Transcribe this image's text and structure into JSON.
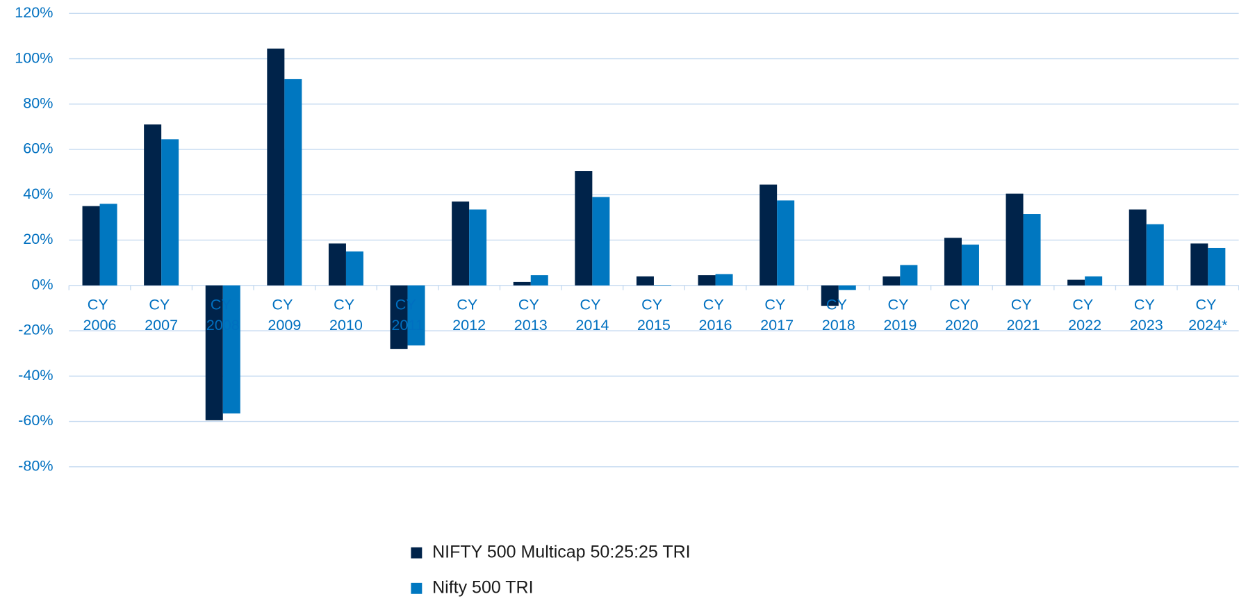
{
  "chart_data": {
    "type": "bar",
    "categories": [
      "CY 2006",
      "CY 2007",
      "CY 2008",
      "CY 2009",
      "CY 2010",
      "CY 2011",
      "CY 2012",
      "CY 2013",
      "CY 2014",
      "CY 2015",
      "CY 2016",
      "CY 2017",
      "CY 2018",
      "CY 2019",
      "CY 2020",
      "CY 2021",
      "CY 2022",
      "CY 2023",
      "CY 2024*"
    ],
    "series": [
      {
        "name": "NIFTY 500 Multicap 50:25:25 TRI",
        "color": "#00234a",
        "values": [
          35,
          71,
          -59.5,
          104.5,
          18.5,
          -28,
          37,
          1.5,
          50.5,
          4,
          4.5,
          44.5,
          -9,
          4,
          21,
          40.5,
          2.5,
          33.5,
          18.5
        ]
      },
      {
        "name": "Nifty 500 TRI",
        "color": "#0077c0",
        "values": [
          36,
          64.5,
          -56.5,
          91,
          15,
          -26.5,
          33.5,
          4.5,
          39,
          0.2,
          5,
          37.5,
          -2,
          9,
          18,
          31.5,
          4,
          27,
          16.5
        ]
      }
    ],
    "ylim": [
      -80,
      120
    ],
    "yticks": [
      {
        "value": -80,
        "label": "-80%"
      },
      {
        "value": -60,
        "label": "-60%"
      },
      {
        "value": -40,
        "label": "-40%"
      },
      {
        "value": -20,
        "label": "-20%"
      },
      {
        "value": 0,
        "label": "0%"
      },
      {
        "value": 20,
        "label": "20%"
      },
      {
        "value": 40,
        "label": "40%"
      },
      {
        "value": 60,
        "label": "60%"
      },
      {
        "value": 80,
        "label": "80%"
      },
      {
        "value": 100,
        "label": "100%"
      },
      {
        "value": 120,
        "label": "120%"
      }
    ],
    "grid": true,
    "legend": "bottom"
  }
}
